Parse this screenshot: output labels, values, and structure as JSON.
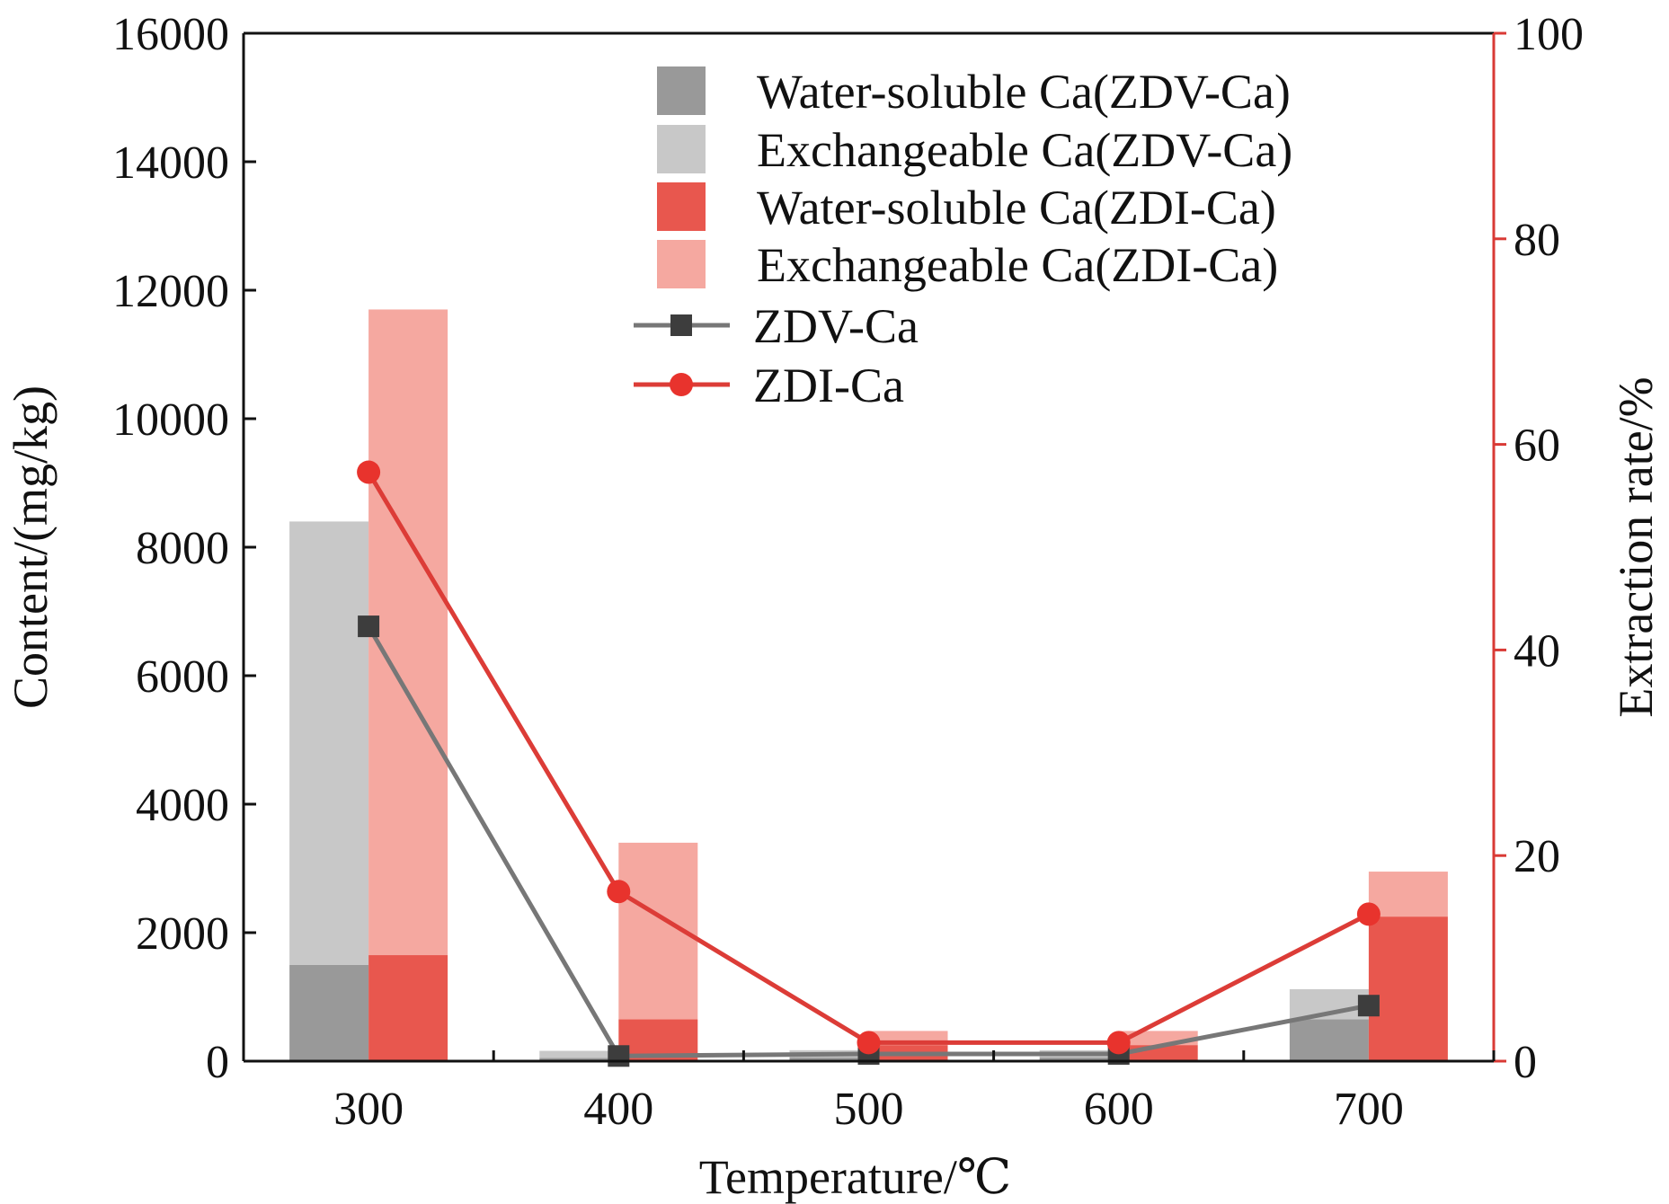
{
  "chart_data": {
    "type": "bar",
    "categories": [
      "300",
      "400",
      "500",
      "600",
      "700"
    ],
    "xlabel": "Temperature/℃",
    "ylabel": "Content/(mg/kg)",
    "y2label": "Extraction rate/%",
    "ylim": [
      0,
      16000
    ],
    "y2lim": [
      0,
      100
    ],
    "yticks": [
      "0",
      "2000",
      "4000",
      "6000",
      "8000",
      "10000",
      "12000",
      "14000",
      "16000"
    ],
    "y2ticks": [
      "0",
      "20",
      "40",
      "60",
      "80",
      "100"
    ],
    "bars": [
      {
        "group": "ZDV-Ca",
        "stack": [
          {
            "name": "Water-soluble Ca(ZDV-Ca)",
            "color": "#999999",
            "values": [
              1500,
              50,
              60,
              60,
              650
            ]
          },
          {
            "name": "Exchangeable Ca(ZDV-Ca)",
            "color": "#c8c8c8",
            "values": [
              6900,
              110,
              110,
              110,
              470
            ]
          }
        ]
      },
      {
        "group": "ZDI-Ca",
        "stack": [
          {
            "name": "Water-soluble Ca(ZDI-Ca)",
            "color": "#e8574e",
            "values": [
              1650,
              650,
              250,
              250,
              2250
            ]
          },
          {
            "name": "Exchangeable Ca(ZDI-Ca)",
            "color": "#f5a8a0",
            "values": [
              10050,
              2750,
              220,
              220,
              700
            ]
          }
        ]
      }
    ],
    "lines": [
      {
        "name": "ZDV-Ca",
        "axis": "right",
        "marker": "square",
        "color": "#777777",
        "marker_color": "#3d3d3d",
        "values": [
          42.3,
          0.5,
          0.7,
          0.7,
          5.4
        ]
      },
      {
        "name": "ZDI-Ca",
        "axis": "right",
        "marker": "circle",
        "color": "#dc3c37",
        "marker_color": "#e8332d",
        "values": [
          57.3,
          16.5,
          1.8,
          1.8,
          14.3
        ]
      }
    ],
    "legend": {
      "position": "top-center",
      "entries": [
        "Water-soluble Ca(ZDV-Ca)",
        "Exchangeable Ca(ZDV-Ca)",
        "Water-soluble Ca(ZDI-Ca)",
        "Exchangeable Ca(ZDI-Ca)",
        "ZDV-Ca",
        "ZDI-Ca"
      ]
    },
    "right_axis_color": "#d93a35"
  }
}
